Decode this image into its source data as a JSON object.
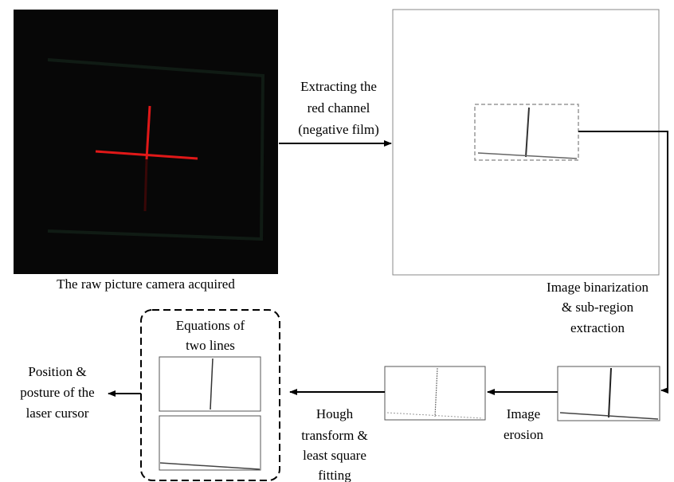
{
  "nodes": [
    {
      "label": [
        "The raw picture camera acquired"
      ]
    },
    {
      "label": [
        "Equations of",
        "two lines"
      ]
    },
    {
      "label": [
        "Position &",
        "posture of the",
        "laser cursor"
      ]
    }
  ],
  "edges": [
    {
      "label": [
        "Extracting the",
        "red channel",
        "(negative film)"
      ]
    },
    {
      "label": [
        "Image binarization",
        "& sub-region",
        "extraction"
      ]
    },
    {
      "label": [
        "Image",
        "erosion"
      ]
    },
    {
      "label": [
        "Hough",
        "transform &",
        "least square",
        "fitting"
      ]
    }
  ]
}
